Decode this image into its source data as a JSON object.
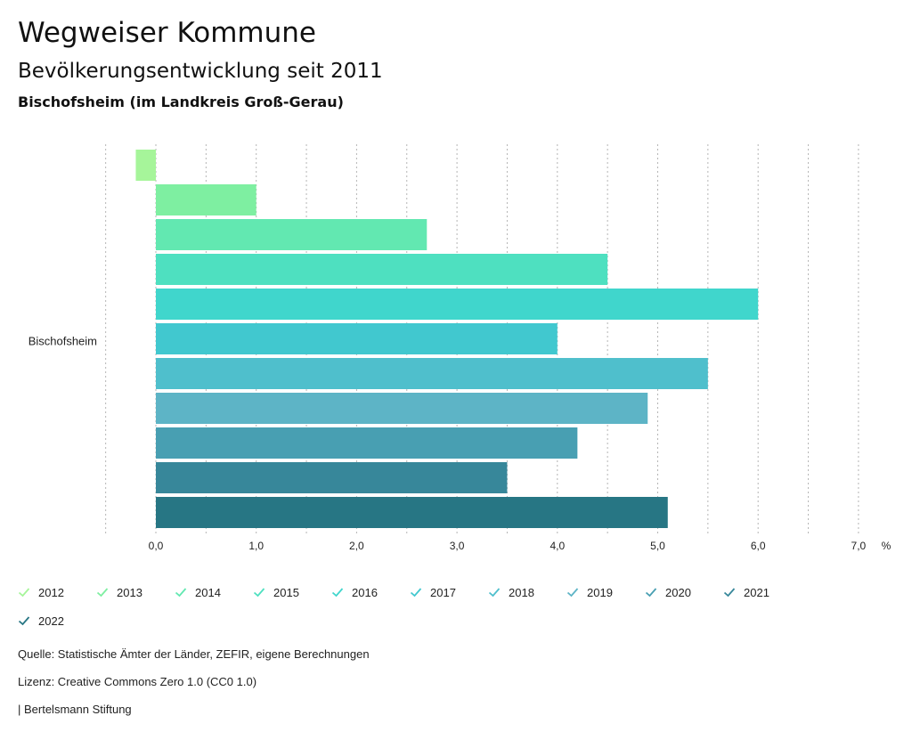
{
  "header": {
    "title": "Wegweiser Kommune",
    "subtitle": "Bevölkerungsentwicklung seit 2011",
    "region": "Bischofsheim (im Landkreis Groß-Gerau)"
  },
  "chart_data": {
    "type": "bar",
    "orientation": "horizontal",
    "categories": [
      "Bischofsheim"
    ],
    "series": [
      {
        "name": "2012",
        "values": [
          -0.2
        ],
        "color": "#a6f59a"
      },
      {
        "name": "2013",
        "values": [
          1.0
        ],
        "color": "#7eefa1"
      },
      {
        "name": "2014",
        "values": [
          2.7
        ],
        "color": "#62e8b1"
      },
      {
        "name": "2015",
        "values": [
          4.5
        ],
        "color": "#4ee0c0"
      },
      {
        "name": "2016",
        "values": [
          6.0
        ],
        "color": "#40d6cc"
      },
      {
        "name": "2017",
        "values": [
          4.0
        ],
        "color": "#41c8cf"
      },
      {
        "name": "2018",
        "values": [
          5.5
        ],
        "color": "#4fbfcc"
      },
      {
        "name": "2019",
        "values": [
          4.9
        ],
        "color": "#5db4c6"
      },
      {
        "name": "2020",
        "values": [
          4.2
        ],
        "color": "#489fb2"
      },
      {
        "name": "2021",
        "values": [
          3.5
        ],
        "color": "#37879a"
      },
      {
        "name": "2022",
        "values": [
          5.1
        ],
        "color": "#277684"
      }
    ],
    "xlim": [
      -0.5,
      7.0
    ],
    "ticks": [
      "0,0",
      "1,0",
      "2,0",
      "3,0",
      "4,0",
      "5,0",
      "6,0",
      "7,0"
    ],
    "unit": "%",
    "grid": "dotted vertical"
  },
  "footer": {
    "source": "Quelle: Statistische Ämter der Länder, ZEFIR, eigene Berechnungen",
    "license": "Lizenz: Creative Commons Zero 1.0 (CC0 1.0)",
    "publisher": "| Bertelsmann Stiftung"
  }
}
